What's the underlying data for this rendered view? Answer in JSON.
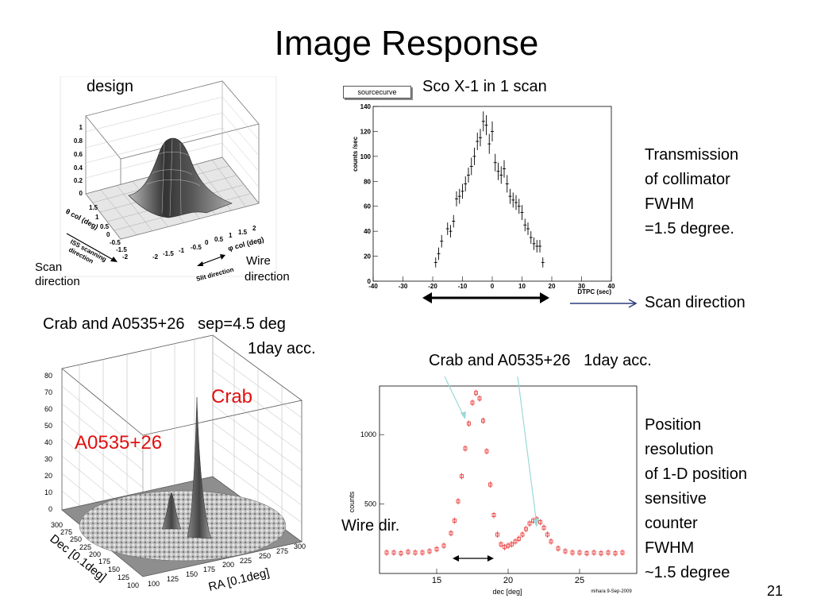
{
  "slide": {
    "title": "Image Response",
    "page_number": "21"
  },
  "panel_design": {
    "label": "design",
    "z_ticks": [
      "1",
      "0.8",
      "0.6",
      "0.4",
      "0.2",
      "0"
    ],
    "y_axis_label": "θ col (deg)",
    "y_ticks": [
      "1.5",
      "1",
      "0.5",
      "0",
      "-0.5",
      "-1",
      "-1.5",
      "-2"
    ],
    "x_axis_label": "φ col (deg)",
    "x_ticks": [
      "-2",
      "-1.5",
      "-1",
      "-0.5",
      "0",
      "0.5",
      "1",
      "1.5",
      "2"
    ],
    "iss_label_1": "ISS scanning",
    "iss_label_2": "direction",
    "slit_label": "Slit direction",
    "scan_direction_1": "Scan",
    "scan_direction_2": "direction",
    "wire_direction_1": "Wire",
    "wire_direction_2": "direction"
  },
  "panel_sco": {
    "histogram_name": "sourcecurve",
    "label": "Sco X-1 in 1 scan",
    "ylabel": "counts /sec",
    "xlabel": "DTPC (sec)",
    "annotation_lines": [
      "Transmission",
      "of collimator",
      "FWHM",
      "=1.5 degree."
    ],
    "scan_direction": "Scan direction"
  },
  "panel_crab3d": {
    "label_1": "Crab and A0535+26   sep=4.5 deg",
    "label_2": "1day acc.",
    "crab_label": "Crab",
    "a0535_label": "A0535+26",
    "z_ticks": [
      "80",
      "70",
      "60",
      "50",
      "40",
      "30",
      "20",
      "10",
      "0"
    ],
    "dec_label": "Dec [0.1deg]",
    "dec_ticks": [
      "300",
      "275",
      "250",
      "225",
      "200",
      "175",
      "150",
      "125",
      "100"
    ],
    "ra_label": "RA [0.1deg]",
    "ra_ticks": [
      "100",
      "125",
      "150",
      "175",
      "200",
      "225",
      "250",
      "275",
      "300"
    ]
  },
  "panel_crab1d": {
    "label": "Crab and A0535+26   1day acc.",
    "wire_dir": "Wire dir.",
    "annotation_lines": [
      "Position",
      "resolution",
      "of 1-D position",
      "sensitive",
      "counter",
      "FWHM",
      "~1.5 degree"
    ],
    "footer_tag": "mihara  9-Sep-2009"
  },
  "chart_data": [
    {
      "type": "scatter",
      "title": "sourcecurve",
      "xlabel": "DTPC (sec)",
      "ylabel": "counts /sec",
      "xlim": [
        -40,
        40
      ],
      "ylim": [
        0,
        140
      ],
      "x_ticks": [
        -40,
        -30,
        -20,
        -10,
        0,
        10,
        20,
        30,
        40
      ],
      "y_ticks": [
        0,
        20,
        40,
        60,
        80,
        100,
        120,
        140
      ],
      "x": [
        -19,
        -18,
        -17,
        -15,
        -14,
        -13,
        -12,
        -11,
        -10,
        -9,
        -8,
        -7,
        -6,
        -5,
        -4,
        -3,
        -2,
        -1,
        0,
        1,
        2,
        3,
        4,
        5,
        6,
        7,
        8,
        9,
        10,
        11,
        12,
        13,
        14,
        15,
        16,
        17
      ],
      "y": [
        15,
        22,
        32,
        42,
        40,
        48,
        66,
        68,
        72,
        78,
        85,
        92,
        100,
        112,
        115,
        128,
        125,
        110,
        120,
        95,
        88,
        85,
        90,
        78,
        68,
        65,
        63,
        60,
        55,
        45,
        42,
        35,
        30,
        28,
        28,
        15
      ],
      "error": [
        4,
        5,
        5,
        5,
        5,
        5,
        6,
        6,
        6,
        6,
        6,
        7,
        7,
        7,
        7,
        8,
        8,
        8,
        8,
        7,
        7,
        7,
        7,
        7,
        6,
        6,
        6,
        6,
        6,
        5,
        5,
        5,
        5,
        5,
        5,
        4
      ]
    },
    {
      "type": "scatter",
      "xlabel": "dec [deg]",
      "ylabel": "counts",
      "xlim": [
        11,
        29
      ],
      "ylim": [
        0,
        1350
      ],
      "x_ticks": [
        15,
        20,
        25
      ],
      "y_ticks": [
        500,
        1000
      ],
      "series": [
        {
          "color": "#e83030",
          "x": [
            11.5,
            12,
            12.5,
            13,
            13.5,
            14,
            14.5,
            15,
            15.5,
            16,
            16.25,
            16.5,
            16.75,
            17,
            17.25,
            17.5,
            17.75,
            18,
            18.25,
            18.5,
            18.75,
            19,
            19.25,
            19.5,
            19.75,
            20,
            20.25,
            20.5,
            20.75,
            21,
            21.25,
            21.5,
            21.75,
            22,
            22.25,
            22.5,
            22.75,
            23,
            23.5,
            24,
            24.5,
            25,
            25.5,
            26,
            26.5,
            27,
            27.5,
            28
          ],
          "y": [
            150,
            150,
            145,
            155,
            150,
            150,
            160,
            175,
            200,
            290,
            380,
            520,
            700,
            900,
            1080,
            1230,
            1300,
            1260,
            1100,
            880,
            640,
            420,
            280,
            210,
            190,
            200,
            210,
            230,
            250,
            280,
            320,
            360,
            380,
            390,
            370,
            330,
            280,
            230,
            180,
            160,
            150,
            150,
            145,
            150,
            145,
            150,
            145,
            150
          ]
        }
      ]
    }
  ]
}
